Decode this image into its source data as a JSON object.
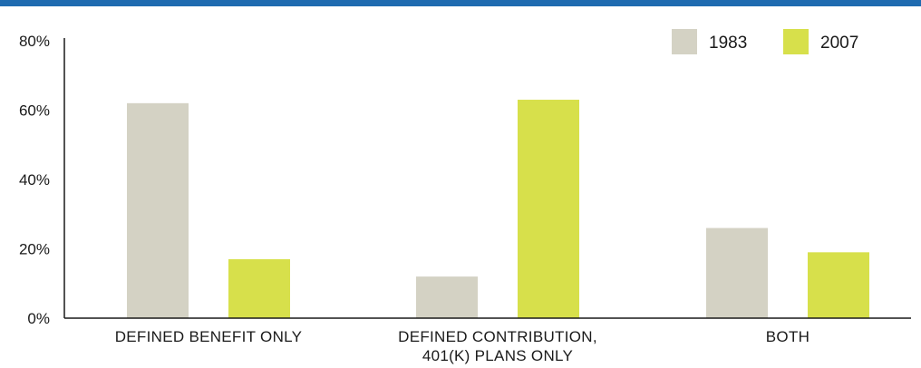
{
  "colors": {
    "top_bar": "#1f6bb0",
    "axis": "#1a1a1a",
    "series_1983": "#d4d2c4",
    "series_2007": "#d7e04b"
  },
  "chart_data": {
    "type": "bar",
    "title": "",
    "xlabel": "",
    "ylabel": "",
    "ylim": [
      0,
      80
    ],
    "yticks": [
      {
        "value": 0,
        "label": "0%"
      },
      {
        "value": 20,
        "label": "20%"
      },
      {
        "value": 40,
        "label": "40%"
      },
      {
        "value": 60,
        "label": "60%"
      },
      {
        "value": 80,
        "label": "80%"
      }
    ],
    "categories": [
      [
        "DEFINED BENEFIT ONLY"
      ],
      [
        "DEFINED CONTRIBUTION,",
        "401(K) PLANS ONLY"
      ],
      [
        "BOTH"
      ]
    ],
    "series": [
      {
        "name": "1983",
        "color": "#d4d2c4",
        "values": [
          62,
          12,
          26
        ]
      },
      {
        "name": "2007",
        "color": "#d7e04b",
        "values": [
          17,
          63,
          19
        ]
      }
    ],
    "grid": false,
    "legend_position": "top-right"
  }
}
